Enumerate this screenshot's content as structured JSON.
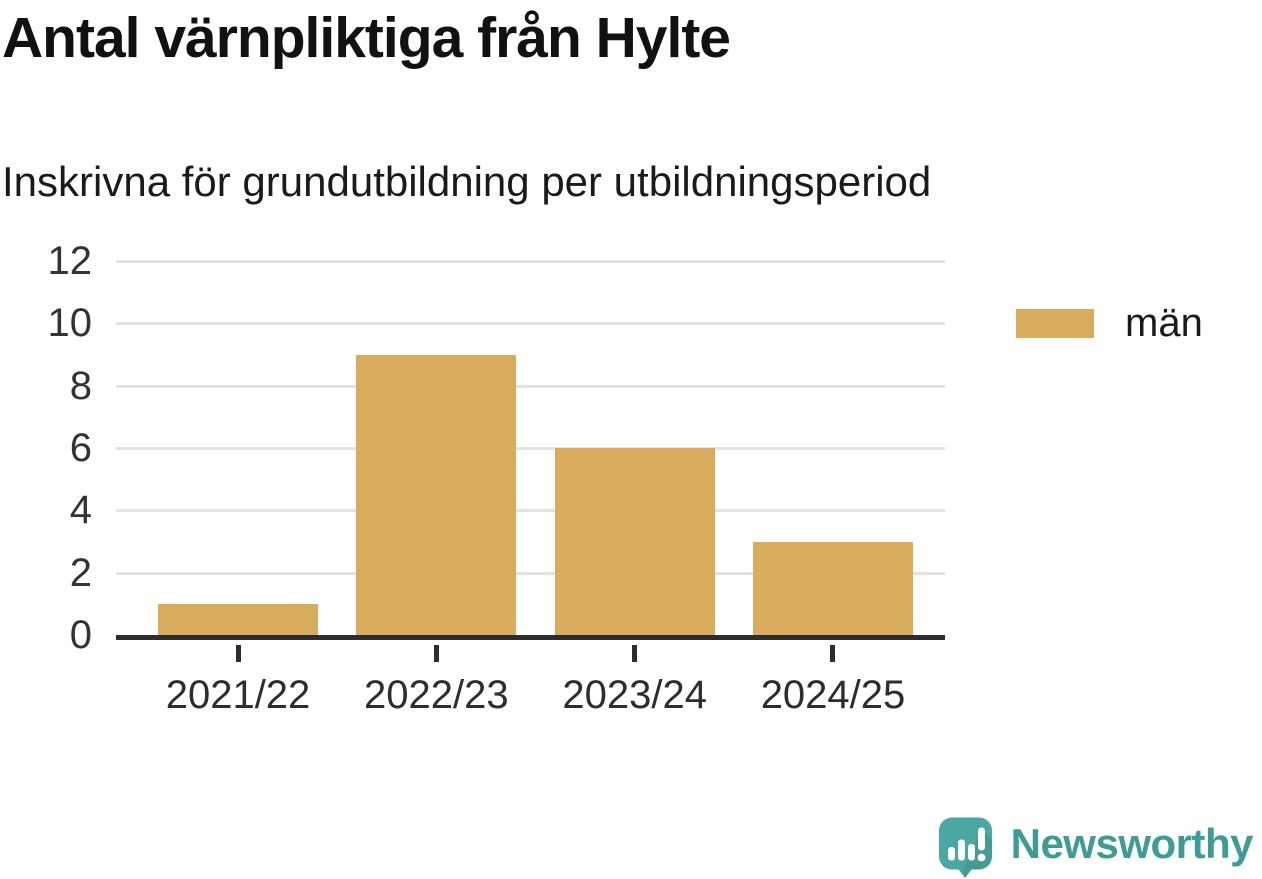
{
  "page": {
    "title": "Antal värnpliktiga från Hylte",
    "subtitle": "Inskrivna för grundutbildning per utbildningsperiod"
  },
  "chart_data": {
    "type": "bar",
    "categories": [
      "2021/22",
      "2022/23",
      "2023/24",
      "2024/25"
    ],
    "series": [
      {
        "name": "män",
        "values": [
          1,
          9,
          6,
          3
        ],
        "color": "#d9ab5c"
      }
    ],
    "title": "Antal värnpliktiga från Hylte",
    "subtitle": "Inskrivna för grundutbildning per utbildningsperiod",
    "xlabel": "",
    "ylabel": "",
    "ylim": [
      0,
      12
    ],
    "yticks": [
      0,
      2,
      4,
      6,
      8,
      10,
      12
    ],
    "grid": "horizontal",
    "legend_position": "right-of-plot"
  },
  "legend": {
    "items": [
      {
        "label": "män",
        "color": "#d9ab5c"
      }
    ]
  },
  "branding": {
    "name": "Newsworthy",
    "icon": "newsworthy-speech-bubble-chart-icon"
  },
  "colors": {
    "bar": "#d9ab5c",
    "axis_line": "#2d2d2d",
    "gridline": "#e2e2e2",
    "tick_label": "#333333",
    "title_text": "#111111",
    "brand_teal": "#3e9b96",
    "brand_bubble": "#4aa7a1",
    "background": "#ffffff"
  }
}
